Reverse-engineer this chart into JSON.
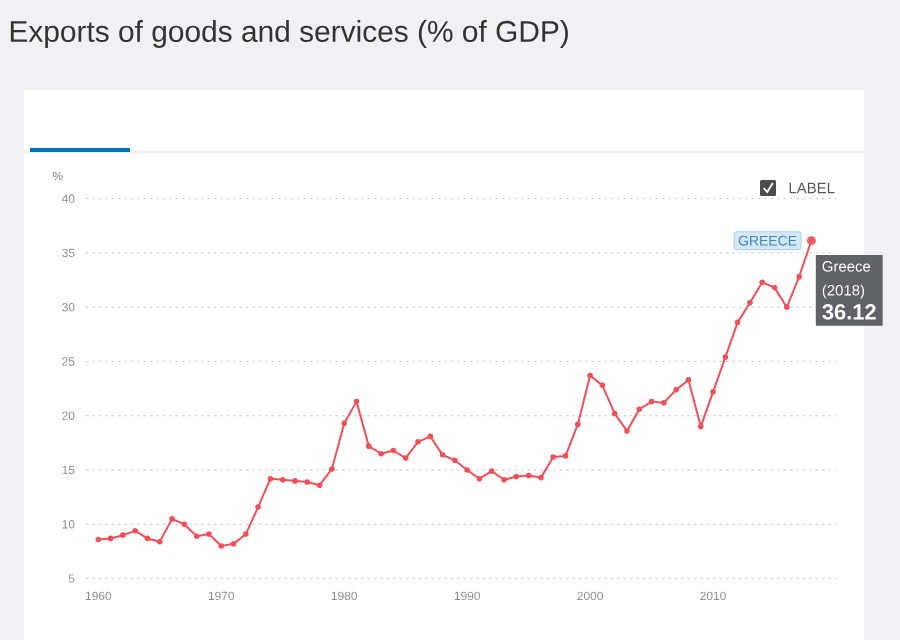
{
  "chart_data": {
    "type": "line",
    "title": "Exports of goods and services (% of GDP)",
    "ylabel": "%",
    "x": [
      1960,
      1961,
      1962,
      1963,
      1964,
      1965,
      1966,
      1967,
      1968,
      1969,
      1970,
      1971,
      1972,
      1973,
      1974,
      1975,
      1976,
      1977,
      1978,
      1979,
      1980,
      1981,
      1982,
      1983,
      1984,
      1985,
      1986,
      1987,
      1988,
      1989,
      1990,
      1991,
      1992,
      1993,
      1994,
      1995,
      1996,
      1997,
      1998,
      1999,
      2000,
      2001,
      2002,
      2003,
      2004,
      2005,
      2006,
      2007,
      2008,
      2009,
      2010,
      2011,
      2012,
      2013,
      2014,
      2015,
      2016,
      2017,
      2018
    ],
    "series": [
      {
        "name": "GREECE",
        "color": "#f0505a",
        "values": [
          8.6,
          8.7,
          9.0,
          9.4,
          8.7,
          8.4,
          10.5,
          10.0,
          8.9,
          9.1,
          8.0,
          8.2,
          9.1,
          11.6,
          14.2,
          14.1,
          14.0,
          13.9,
          13.6,
          15.1,
          19.3,
          21.3,
          17.2,
          16.5,
          16.8,
          16.1,
          17.6,
          18.1,
          16.4,
          15.9,
          15.0,
          14.2,
          14.9,
          14.1,
          14.4,
          14.5,
          14.3,
          16.2,
          16.3,
          19.2,
          23.7,
          22.8,
          20.2,
          18.6,
          20.6,
          21.3,
          21.2,
          22.4,
          23.3,
          19.0,
          22.2,
          25.4,
          28.6,
          30.4,
          32.3,
          31.8,
          30.0,
          32.8,
          36.12
        ]
      }
    ],
    "xlim": [
      1959,
      2020
    ],
    "ylim": [
      5,
      40
    ],
    "xticks": [
      1960,
      1970,
      1980,
      1990,
      2000,
      2010
    ],
    "yticks": [
      5,
      10,
      15,
      20,
      25,
      30,
      35,
      40
    ],
    "grid": "y",
    "marker": "circle",
    "line_style": "solid",
    "annotations": [
      "LABEL",
      "Greece",
      "(2018)",
      {
        "text": "36.12",
        "x": 2018,
        "y": 36.12
      }
    ]
  }
}
